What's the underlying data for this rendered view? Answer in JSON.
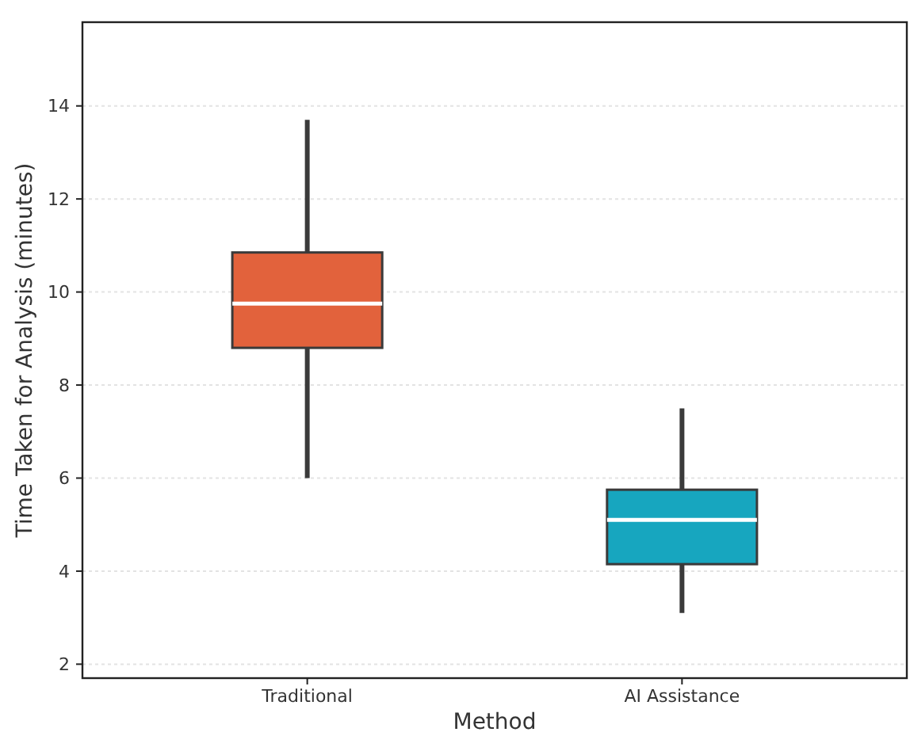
{
  "chart_data": {
    "type": "box",
    "xlabel": "Method",
    "ylabel": "Time Taken for Analysis (minutes)",
    "categories": [
      "Traditional",
      "AI Assistance"
    ],
    "colors": [
      "#e2623c",
      "#17a6bf"
    ],
    "boxes": [
      {
        "low": 6.0,
        "q1": 8.8,
        "median": 9.75,
        "q3": 10.85,
        "high": 13.7
      },
      {
        "low": 3.1,
        "q1": 4.15,
        "median": 5.1,
        "q3": 5.75,
        "high": 7.5
      }
    ],
    "ylim": [
      1.7,
      15.8
    ],
    "yticks": [
      2,
      4,
      6,
      8,
      10,
      12,
      14
    ],
    "grid": "y"
  }
}
